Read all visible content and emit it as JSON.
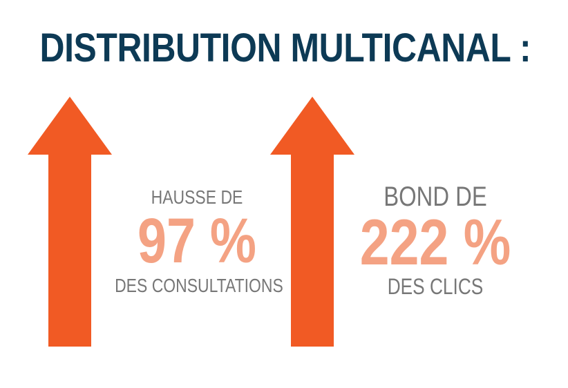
{
  "title": "DISTRIBUTION MULTICANAL :",
  "colors": {
    "title": "#0d3a55",
    "arrow": "#f15a24",
    "highlight": "#f4a283",
    "text": "#777777"
  },
  "stats": [
    {
      "pre": "HAUSSE DE",
      "value": "97 %",
      "post": "DES CONSULTATIONS"
    },
    {
      "pre": "BOND DE",
      "value": "222 %",
      "post": "DES CLICS"
    }
  ],
  "icons": [
    "arrow-up-icon",
    "arrow-up-icon"
  ]
}
